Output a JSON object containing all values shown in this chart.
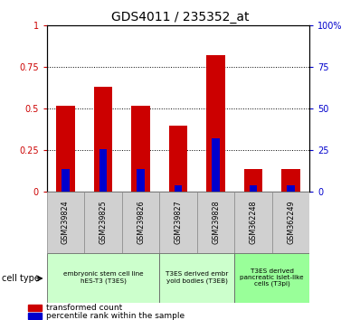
{
  "title": "GDS4011 / 235352_at",
  "samples": [
    "GSM239824",
    "GSM239825",
    "GSM239826",
    "GSM239827",
    "GSM239828",
    "GSM362248",
    "GSM362249"
  ],
  "transformed_count": [
    0.52,
    0.63,
    0.52,
    0.4,
    0.82,
    0.14,
    0.14
  ],
  "percentile_rank": [
    0.14,
    0.26,
    0.14,
    0.04,
    0.32,
    0.04,
    0.04
  ],
  "ylim_left": [
    0,
    1.0
  ],
  "ylim_right": [
    0,
    100
  ],
  "yticks_left": [
    0,
    0.25,
    0.5,
    0.75,
    1.0
  ],
  "yticks_right": [
    0,
    25,
    50,
    75,
    100
  ],
  "ytick_labels_left": [
    "0",
    "0.25",
    "0.5",
    "0.75",
    "1"
  ],
  "ytick_labels_right": [
    "0",
    "25",
    "50",
    "75",
    "100%"
  ],
  "bar_color_red": "#cc0000",
  "bar_color_blue": "#0000cc",
  "bar_width": 0.5,
  "cell_type_groups": [
    {
      "label": "embryonic stem cell line\nhES-T3 (T3ES)",
      "start": 0,
      "end": 3,
      "color": "#ccffcc"
    },
    {
      "label": "T3ES derived embr\nyoid bodies (T3EB)",
      "start": 3,
      "end": 5,
      "color": "#ccffcc"
    },
    {
      "label": "T3ES derived\npancreatic islet-like\ncells (T3pi)",
      "start": 5,
      "end": 7,
      "color": "#99ff99"
    }
  ],
  "legend_red_label": "transformed count",
  "legend_blue_label": "percentile rank within the sample",
  "cell_type_label": "cell type"
}
